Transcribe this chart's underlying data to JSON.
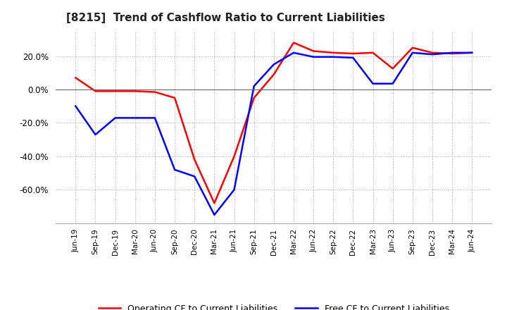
{
  "title": "[8215]  Trend of Cashflow Ratio to Current Liabilities",
  "x_labels": [
    "Jun-19",
    "Sep-19",
    "Dec-19",
    "Mar-20",
    "Jun-20",
    "Sep-20",
    "Dec-20",
    "Mar-21",
    "Jun-21",
    "Sep-21",
    "Dec-21",
    "Mar-22",
    "Jun-22",
    "Sep-22",
    "Dec-22",
    "Mar-23",
    "Jun-23",
    "Sep-23",
    "Dec-23",
    "Mar-24",
    "Jun-24"
  ],
  "operating_cf": [
    7.0,
    -1.0,
    -1.0,
    -1.0,
    -1.5,
    -5.0,
    -42.0,
    -68.0,
    -40.0,
    -5.0,
    9.0,
    28.0,
    23.0,
    22.0,
    21.5,
    22.0,
    12.5,
    25.0,
    22.0,
    21.5,
    22.0
  ],
  "free_cf": [
    -10.0,
    -27.0,
    -17.0,
    -17.0,
    -17.0,
    -48.0,
    -52.0,
    -75.0,
    -60.0,
    2.0,
    15.0,
    22.0,
    19.5,
    19.5,
    19.0,
    3.5,
    3.5,
    22.0,
    21.0,
    22.0,
    22.0
  ],
  "operating_color": "#ff0000",
  "free_color": "#0000ff",
  "ylim": [
    -80,
    35
  ],
  "yticks": [
    20.0,
    0.0,
    -20.0,
    -40.0,
    -60.0
  ],
  "legend_operating": "Operating CF to Current Liabilities",
  "legend_free": "Free CF to Current Liabilities",
  "background_color": "#ffffff",
  "title_fontsize": 11,
  "line_width": 1.8,
  "grid_color": "#aaaaaa",
  "zero_line_color": "#666666"
}
